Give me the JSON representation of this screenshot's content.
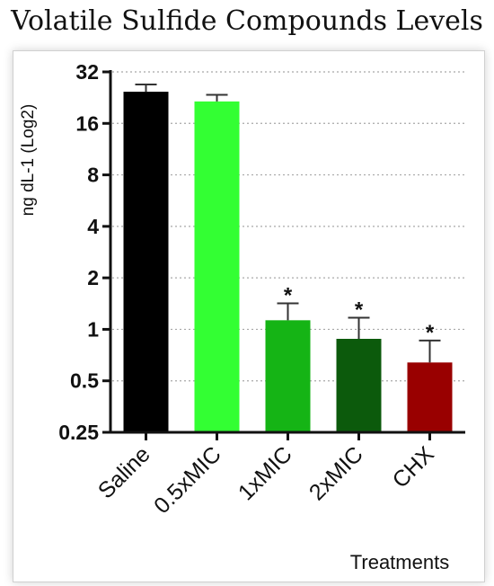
{
  "chart_data": {
    "type": "bar",
    "title": "Volatile Sulfide Compounds Levels",
    "xlabel": "Treatments",
    "ylabel": "ng dL-1 (Log2)",
    "yscale": "log2",
    "ylim": [
      0.25,
      32
    ],
    "yticks": [
      0.25,
      0.5,
      1,
      2,
      4,
      8,
      16,
      32
    ],
    "ytick_labels": [
      "0.25",
      "0.5",
      "1",
      "2",
      "4",
      "8",
      "16",
      "32"
    ],
    "grid": "horizontal dotted",
    "categories": [
      "Saline",
      "0.5xMIC",
      "1xMIC",
      "2xMIC",
      "CHX"
    ],
    "values": [
      24.5,
      21.5,
      1.13,
      0.88,
      0.64
    ],
    "error_upper": [
      27.0,
      23.5,
      1.42,
      1.17,
      0.86
    ],
    "significance": [
      "",
      "",
      "*",
      "*",
      "*"
    ],
    "colors": [
      "#000000",
      "#33ff33",
      "#15b415",
      "#0c5a0c",
      "#990000"
    ]
  }
}
